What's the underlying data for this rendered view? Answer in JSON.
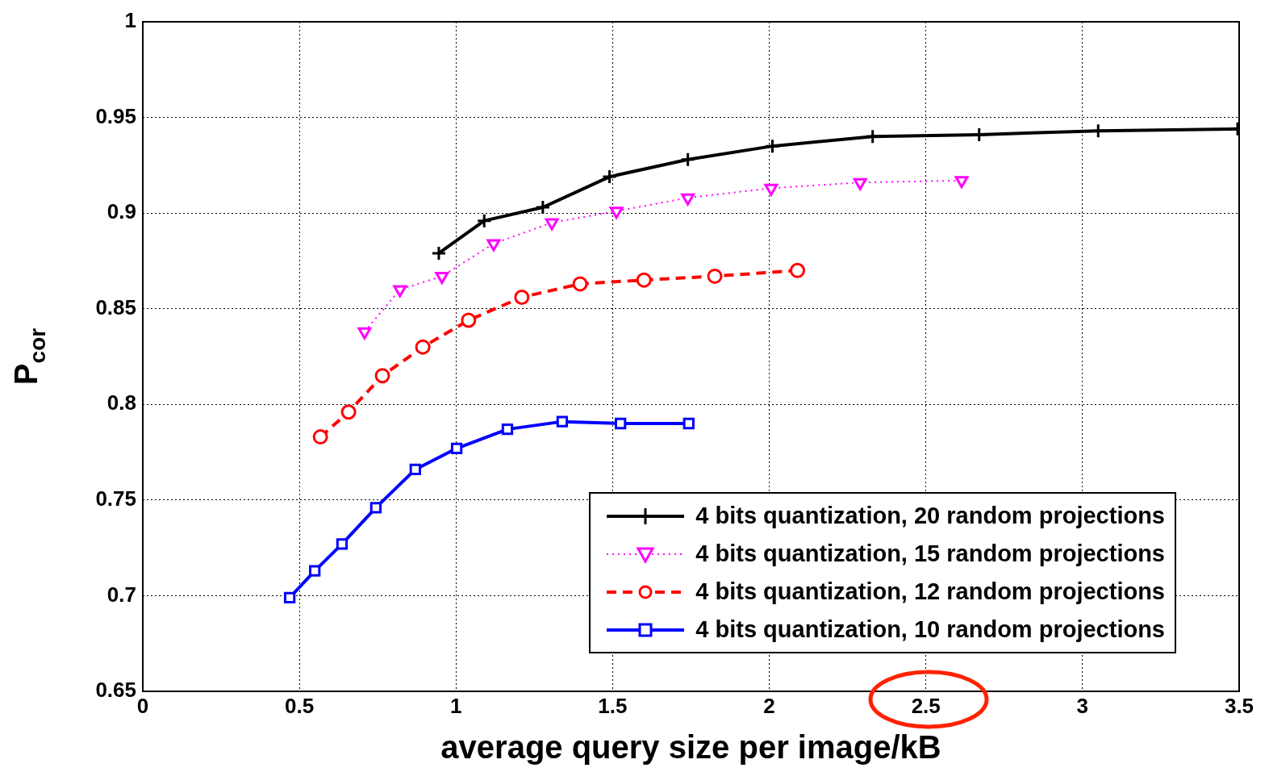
{
  "chart_data": {
    "type": "line",
    "xlabel": "average query size per image/kB",
    "ylabel": "P$_{cor}$",
    "xlim": [
      0,
      3.5
    ],
    "ylim": [
      0.65,
      1
    ],
    "xticks": [
      0,
      0.5,
      1,
      1.5,
      2,
      2.5,
      3,
      3.5
    ],
    "yticks": [
      0.65,
      0.7,
      0.75,
      0.8,
      0.85,
      0.9,
      0.95,
      1
    ],
    "grid": true,
    "legend": "bottom right",
    "series": [
      {
        "name": "4 bits quantization, 20 random projections",
        "color": "#000000",
        "marker": "cross",
        "line_style": "solid",
        "x": [
          0.945,
          1.09,
          1.277,
          1.49,
          1.74,
          2.01,
          2.33,
          2.67,
          3.05,
          3.495
        ],
        "values": [
          0.879,
          0.896,
          0.903,
          0.919,
          0.928,
          0.935,
          0.94,
          0.941,
          0.943,
          0.944
        ]
      },
      {
        "name": "4 bits quantization, 15 random projections",
        "color": "#ff00ff",
        "marker": "triangle",
        "line_style": "dotted",
        "x": [
          0.708,
          0.821,
          0.955,
          1.12,
          1.306,
          1.512,
          1.74,
          2.006,
          2.29,
          2.614
        ],
        "values": [
          0.838,
          0.86,
          0.867,
          0.884,
          0.895,
          0.901,
          0.908,
          0.913,
          0.916,
          0.917
        ]
      },
      {
        "name": "4 bits quantization, 12 random projections",
        "color": "#ff0000",
        "marker": "circle",
        "line_style": "dashed",
        "x": [
          0.567,
          0.657,
          0.765,
          0.894,
          1.04,
          1.21,
          1.396,
          1.6,
          1.826,
          2.09
        ],
        "values": [
          0.783,
          0.796,
          0.815,
          0.83,
          0.844,
          0.856,
          0.863,
          0.865,
          0.867,
          0.87
        ]
      },
      {
        "name": "4 bits quantization, 10 random projections",
        "color": "#0000ff",
        "marker": "square",
        "line_style": "solid",
        "x": [
          0.469,
          0.549,
          0.636,
          0.744,
          0.87,
          1.002,
          1.164,
          1.339,
          1.525,
          1.743
        ],
        "values": [
          0.699,
          0.713,
          0.727,
          0.746,
          0.766,
          0.777,
          0.787,
          0.791,
          0.79,
          0.79
        ]
      }
    ]
  }
}
